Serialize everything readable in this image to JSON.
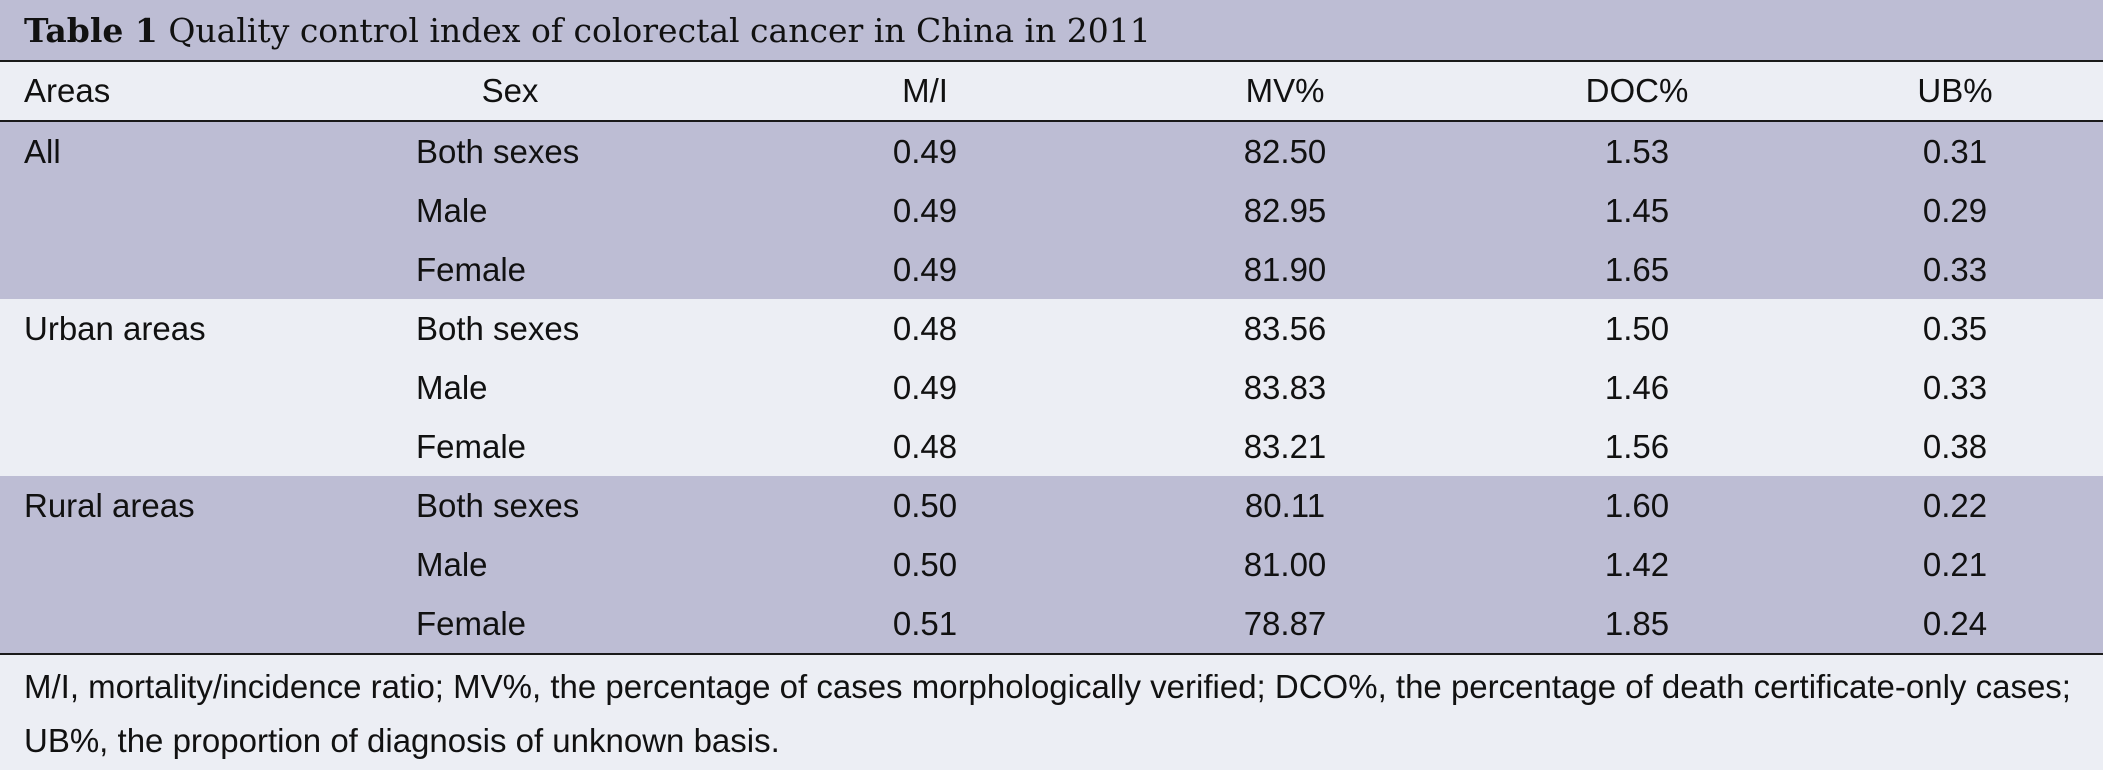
{
  "caption": {
    "label": "Table 1",
    "title": "Quality control index of colorectal cancer in China in 2011"
  },
  "headers": {
    "areas": "Areas",
    "sex": "Sex",
    "mi": "M/I",
    "mv": "MV%",
    "doc": "DOC%",
    "ub": "UB%"
  },
  "groups": [
    {
      "area": "All",
      "rows": [
        {
          "sex": "Both sexes",
          "mi": "0.49",
          "mv": "82.50",
          "doc": "1.53",
          "ub": "0.31"
        },
        {
          "sex": "Male",
          "mi": "0.49",
          "mv": "82.95",
          "doc": "1.45",
          "ub": "0.29"
        },
        {
          "sex": "Female",
          "mi": "0.49",
          "mv": "81.90",
          "doc": "1.65",
          "ub": "0.33"
        }
      ]
    },
    {
      "area": "Urban areas",
      "rows": [
        {
          "sex": "Both sexes",
          "mi": "0.48",
          "mv": "83.56",
          "doc": "1.50",
          "ub": "0.35"
        },
        {
          "sex": "Male",
          "mi": "0.49",
          "mv": "83.83",
          "doc": "1.46",
          "ub": "0.33"
        },
        {
          "sex": "Female",
          "mi": "0.48",
          "mv": "83.21",
          "doc": "1.56",
          "ub": "0.38"
        }
      ]
    },
    {
      "area": "Rural areas",
      "rows": [
        {
          "sex": "Both sexes",
          "mi": "0.50",
          "mv": "80.11",
          "doc": "1.60",
          "ub": "0.22"
        },
        {
          "sex": "Male",
          "mi": "0.50",
          "mv": "81.00",
          "doc": "1.42",
          "ub": "0.21"
        },
        {
          "sex": "Female",
          "mi": "0.51",
          "mv": "78.87",
          "doc": "1.85",
          "ub": "0.24"
        }
      ]
    }
  ],
  "footnote": "M/I, mortality/incidence ratio; MV%, the percentage of cases morphologically verified; DCO%, the percentage of death certificate-only cases; UB%, the proportion of diagnosis of unknown basis.",
  "colors": {
    "shaded_band": "#bdbdd4",
    "light_band": "#eceef4",
    "rule": "#1a1a1a"
  }
}
